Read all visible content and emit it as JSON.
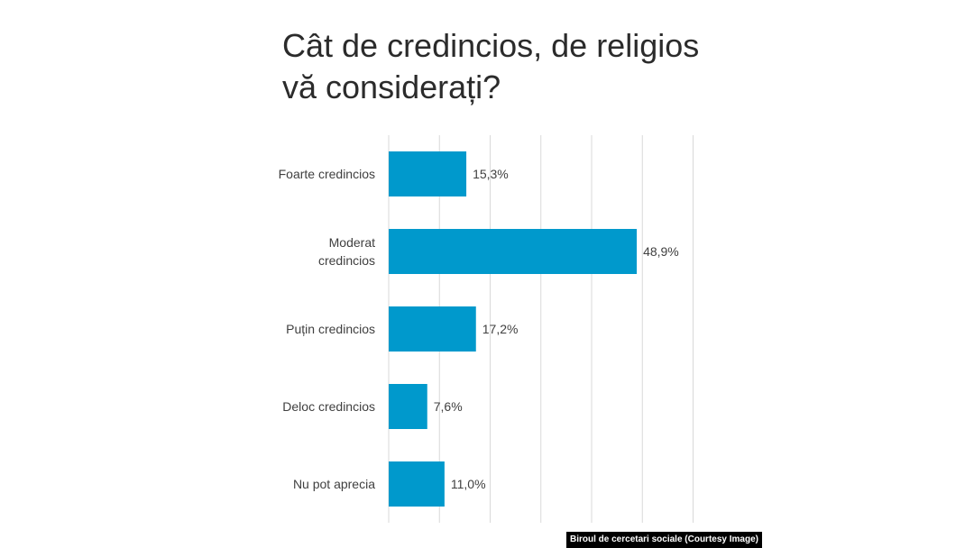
{
  "chart_data": {
    "type": "bar",
    "orientation": "horizontal",
    "title": "Cât de credincios, de religios\nvă considerați?",
    "categories": [
      "Foarte credincios",
      "Moderat\ncredincios",
      "Puțin credincios",
      "Deloc credincios",
      "Nu pot aprecia"
    ],
    "values": [
      15.3,
      48.9,
      17.2,
      7.6,
      11.0
    ],
    "value_labels": [
      "15,3%",
      "48,9%",
      "17,2%",
      "7,6%",
      "11,0%"
    ],
    "xlim": [
      0,
      60
    ],
    "grid": true,
    "bar_color": "#0099CC",
    "grid_color": "#D9D9D9"
  },
  "caption": "Biroul de cercetari sociale (Courtesy Image)"
}
